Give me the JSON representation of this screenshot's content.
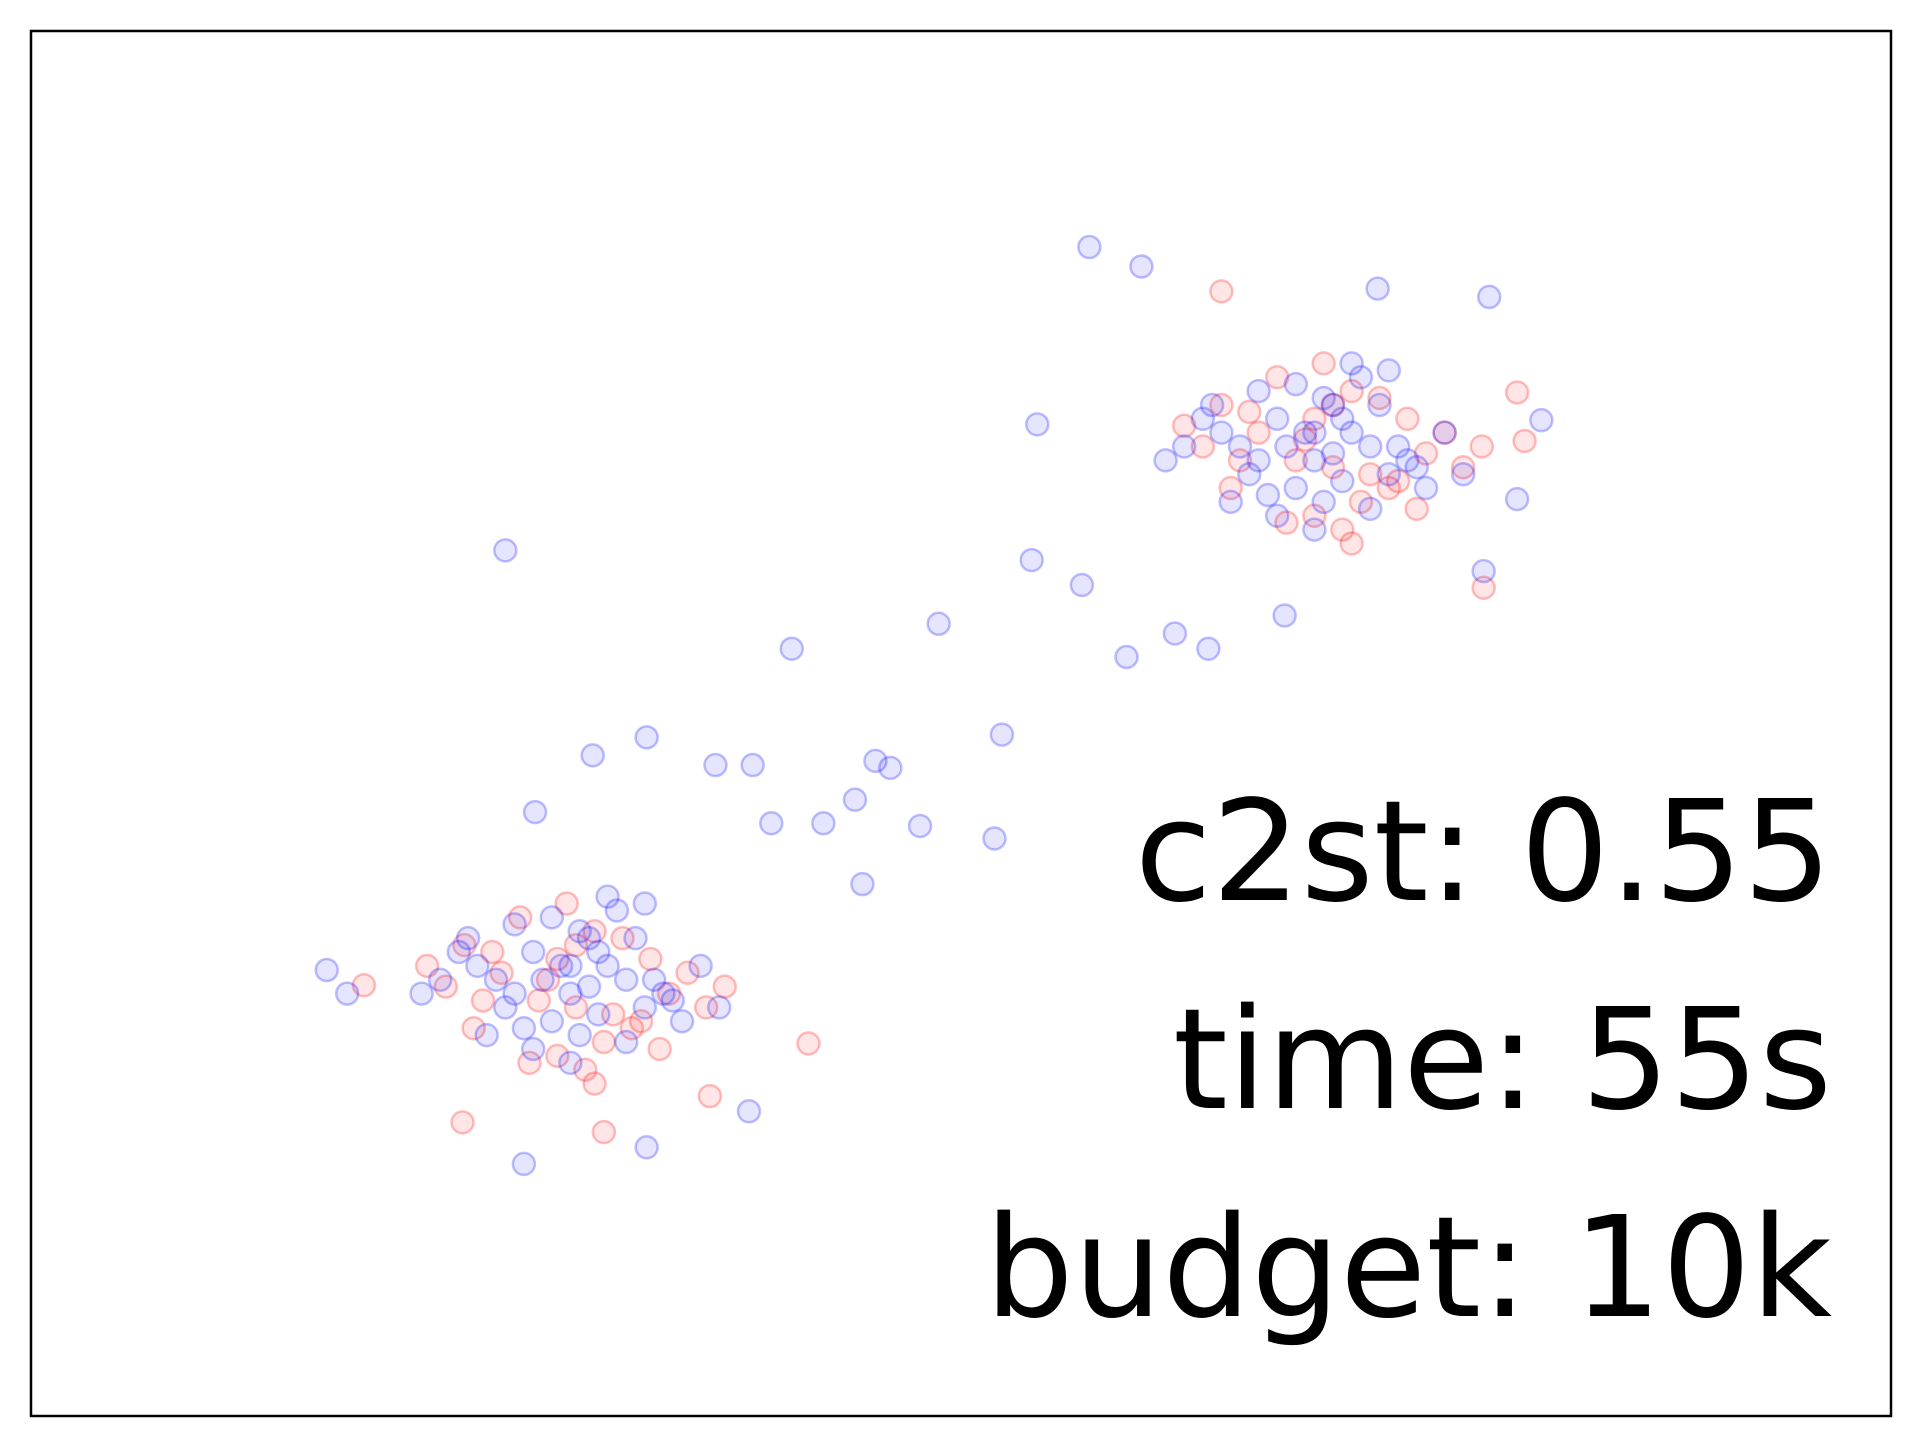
{
  "chart_data": {
    "type": "scatter",
    "annotations": [
      "c2st: 0.55",
      "time: 55s",
      "budget: 10k"
    ],
    "xlim": [
      0,
      10
    ],
    "ylim": [
      0,
      10
    ],
    "series": [
      {
        "color": "#ff0000",
        "x": [
          6.6,
          6.8,
          7.0,
          7.2,
          7.4,
          6.5,
          6.9,
          7.1,
          7.3,
          7.6,
          6.3,
          7.05,
          6.7,
          7.5,
          6.2,
          7.7,
          6.95,
          7.15,
          6.55,
          7.35,
          6.85,
          7.25,
          6.45,
          7.8,
          6.75,
          7.0,
          6.4,
          7.45,
          6.9,
          7.1,
          2.53,
          2.73,
          2.93,
          3.13,
          3.33,
          2.43,
          2.83,
          3.03,
          3.23,
          3.53,
          2.23,
          2.98,
          2.63,
          3.43,
          2.13,
          3.63,
          2.88,
          3.08,
          2.48,
          3.28,
          2.78,
          3.18,
          2.38,
          3.73,
          2.68,
          2.93,
          2.33,
          3.38,
          2.83,
          3.03,
          6.4,
          7.99,
          7.81,
          1.79,
          4.18,
          2.32,
          3.08,
          3.65,
          8.03
        ],
        "values": [
          7.1,
          6.9,
          7.3,
          6.8,
          7.2,
          6.9,
          6.5,
          7.4,
          6.7,
          7.1,
          7.0,
          6.4,
          7.5,
          6.95,
          7.15,
          6.85,
          7.6,
          6.6,
          7.25,
          6.75,
          7.05,
          7.35,
          6.7,
          7.0,
          6.45,
          6.85,
          7.3,
          6.55,
          7.2,
          6.3,
          3.2,
          3.0,
          3.4,
          2.9,
          3.3,
          3.0,
          2.6,
          3.5,
          2.8,
          3.2,
          3.1,
          2.5,
          3.6,
          3.05,
          3.25,
          2.95,
          3.7,
          2.7,
          3.35,
          2.85,
          3.15,
          3.45,
          2.8,
          3.1,
          2.55,
          2.95,
          3.4,
          2.65,
          3.3,
          2.4,
          8.12,
          7.39,
          5.98,
          3.11,
          2.69,
          2.12,
          2.05,
          2.31,
          7.04
        ]
      },
      {
        "color": "#0000ff",
        "x": [
          6.5,
          6.7,
          6.9,
          7.1,
          7.3,
          6.6,
          6.8,
          7.0,
          7.2,
          7.4,
          6.4,
          6.95,
          7.15,
          6.75,
          7.05,
          6.55,
          7.25,
          6.85,
          7.5,
          6.3,
          6.9,
          7.1,
          6.6,
          7.35,
          6.45,
          7.0,
          6.8,
          7.2,
          6.2,
          7.6,
          6.7,
          7.05,
          6.95,
          6.35,
          7.45,
          6.65,
          7.3,
          6.1,
          7.7,
          6.9,
          2.5,
          2.7,
          2.9,
          3.1,
          3.3,
          2.6,
          2.8,
          3.0,
          3.2,
          3.4,
          2.4,
          2.95,
          3.15,
          2.75,
          3.05,
          2.55,
          3.25,
          2.85,
          3.5,
          2.3,
          2.9,
          3.1,
          2.6,
          3.35,
          2.45,
          3.0,
          2.8,
          3.2,
          2.2,
          3.6,
          2.7,
          3.05,
          2.95,
          2.35,
          3.45,
          2.65,
          3.3,
          2.1,
          3.7,
          2.9,
          2.55,
          4.09,
          4.88,
          5.22,
          5.18,
          5.69,
          5.97,
          7.84,
          7.24,
          5.41,
          5.89,
          6.15,
          6.33,
          4.54,
          4.62,
          4.43,
          4.78,
          4.47,
          3.98,
          4.26,
          3.31,
          3.02,
          3.68,
          3.88,
          2.71,
          1.59,
          1.7,
          2.65,
          3.31,
          3.86,
          7.99,
          8.12,
          7.81,
          6.74,
          5.65,
          5.38
        ],
        "values": [
          7.0,
          7.2,
          6.9,
          7.1,
          6.8,
          7.4,
          6.7,
          7.3,
          7.0,
          6.9,
          7.1,
          6.6,
          7.5,
          7.0,
          7.2,
          6.8,
          7.3,
          7.1,
          6.7,
          7.2,
          6.4,
          7.6,
          6.9,
          7.0,
          6.6,
          6.95,
          7.45,
          6.55,
          7.0,
          7.1,
          6.5,
          6.75,
          7.35,
          7.3,
          6.85,
          6.65,
          7.55,
          6.9,
          6.8,
          7.1,
          3.15,
          3.35,
          3.05,
          3.25,
          2.95,
          3.55,
          2.85,
          3.45,
          3.15,
          3.05,
          3.25,
          2.75,
          3.65,
          3.15,
          3.35,
          2.95,
          3.45,
          3.25,
          2.85,
          3.35,
          2.55,
          3.75,
          3.05,
          3.15,
          2.75,
          3.1,
          3.6,
          2.7,
          3.15,
          3.25,
          2.65,
          2.9,
          3.5,
          3.45,
          3.0,
          2.8,
          3.7,
          3.05,
          2.95,
          3.25,
          6.25,
          5.54,
          5.72,
          4.92,
          4.17,
          8.44,
          8.3,
          8.08,
          8.14,
          7.16,
          5.48,
          5.65,
          5.54,
          4.73,
          4.68,
          4.45,
          4.26,
          3.84,
          4.28,
          4.28,
          4.9,
          4.77,
          4.7,
          4.7,
          4.36,
          3.22,
          3.05,
          1.82,
          1.94,
          2.2,
          6.62,
          7.19,
          6.1,
          5.78,
          6.0,
          6.18
        ]
      }
    ]
  }
}
